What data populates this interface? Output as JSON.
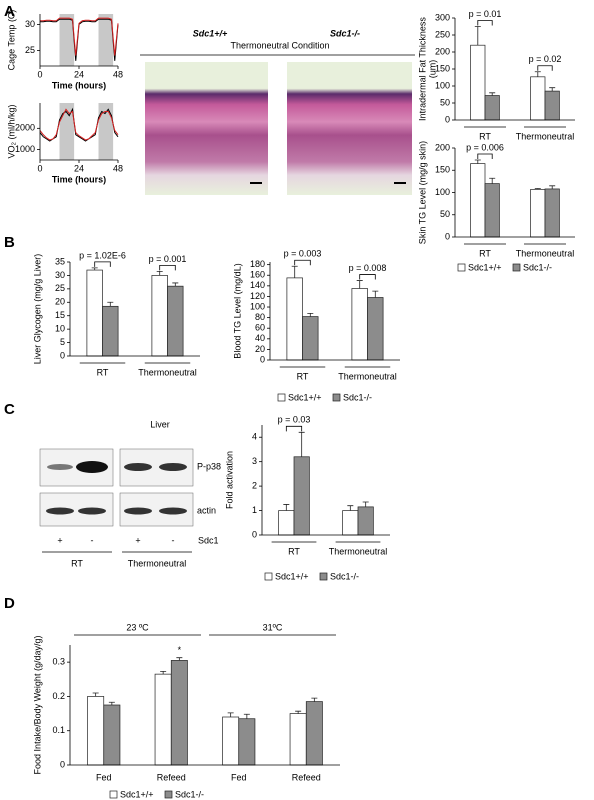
{
  "panel_labels": [
    "A",
    "B",
    "C",
    "D"
  ],
  "histology": {
    "labels": [
      "Sdc1+/+",
      "Sdc1-/-"
    ],
    "condition": "Thermoneutral Condition"
  },
  "western_blot": {
    "title": "Liver",
    "bands": [
      "P-p38",
      "actin"
    ],
    "genotype": [
      "+",
      "-",
      "+",
      "-"
    ],
    "genotype_label": "Sdc1",
    "conditions": [
      "RT",
      "Thermoneutral"
    ]
  },
  "chart_data": [
    {
      "type": "line",
      "ylabel": "Cage Temp (C)",
      "xlabel": "Time (hours)",
      "x": [
        0,
        2,
        4,
        6,
        8,
        10,
        12,
        14,
        16,
        18,
        20,
        22,
        24,
        26,
        28,
        30,
        32,
        34,
        36,
        38,
        40,
        42,
        44,
        46,
        48
      ],
      "xlim": [
        0,
        48
      ],
      "xticks": [
        0,
        24,
        48
      ],
      "ylim": [
        22,
        32
      ],
      "yticks": [
        25,
        30
      ],
      "shaded": [
        [
          12,
          21
        ],
        [
          36,
          45
        ]
      ],
      "series": [
        {
          "color": "#000000",
          "values": [
            30.5,
            30.5,
            30.6,
            30.6,
            30.5,
            30.5,
            31,
            31,
            31,
            31,
            30.8,
            23,
            30,
            30.5,
            30.6,
            30.6,
            30.5,
            30.5,
            31,
            31,
            31,
            31,
            30.8,
            23,
            30
          ]
        },
        {
          "color": "#d62020",
          "values": [
            30.7,
            30.7,
            30.8,
            30.8,
            30.7,
            30.7,
            31.2,
            31.2,
            31.2,
            31.2,
            31,
            24,
            30.2,
            30.7,
            30.8,
            30.8,
            30.7,
            30.7,
            31.2,
            31.2,
            31.2,
            31.2,
            31,
            24,
            30.2
          ]
        }
      ]
    },
    {
      "type": "line",
      "ylabel": "VO₂ (ml/h/kg)",
      "xlabel": "Time (hours)",
      "x": [
        0,
        2,
        4,
        6,
        8,
        10,
        12,
        14,
        16,
        18,
        20,
        22,
        24,
        26,
        28,
        30,
        32,
        34,
        36,
        38,
        40,
        42,
        44,
        46,
        48
      ],
      "xlim": [
        0,
        48
      ],
      "xticks": [
        0,
        24,
        48
      ],
      "ylim": [
        500,
        3200
      ],
      "yticks": [
        1000,
        2000
      ],
      "shaded": [
        [
          12,
          21
        ],
        [
          36,
          45
        ]
      ],
      "series": [
        {
          "color": "#000000",
          "values": [
            1800,
            1600,
            1500,
            1400,
            1500,
            1600,
            2400,
            2700,
            2800,
            2600,
            2900,
            1700,
            1600,
            1500,
            1400,
            1500,
            1600,
            1700,
            2500,
            2800,
            2700,
            2900,
            2600,
            1800,
            1600
          ]
        },
        {
          "color": "#d62020",
          "values": [
            1900,
            1700,
            1550,
            1450,
            1500,
            1700,
            2300,
            2600,
            2900,
            2700,
            2800,
            1800,
            1650,
            1550,
            1450,
            1500,
            1650,
            1800,
            2400,
            2700,
            2800,
            2800,
            2500,
            1900,
            1700
          ]
        }
      ]
    },
    {
      "type": "bar",
      "ylabel": [
        "Intradermal Fat Thickness",
        "(um)"
      ],
      "categories": [
        "RT",
        "Thermoneutral"
      ],
      "ylim": [
        0,
        300
      ],
      "yticks": [
        0,
        50,
        100,
        150,
        200,
        250,
        300
      ],
      "legend": false,
      "annotations": [
        "p = 0.01",
        "p = 0.02"
      ],
      "series": [
        {
          "name": "Sdc1+/+",
          "color": "#ffffff",
          "values": [
            220,
            127
          ],
          "errors": [
            55,
            15
          ]
        },
        {
          "name": "Sdc1-/-",
          "color": "#8c8c8c",
          "values": [
            72,
            85
          ],
          "errors": [
            8,
            10
          ]
        }
      ]
    },
    {
      "type": "bar",
      "ylabel": [
        "Skin TG Level (mg/g skin)"
      ],
      "categories": [
        "RT",
        "Thermoneutral"
      ],
      "ylim": [
        0,
        200
      ],
      "yticks": [
        0,
        50,
        100,
        150,
        200
      ],
      "legend": true,
      "annotations": [
        "p = 0.006"
      ],
      "series": [
        {
          "name": "Sdc1+/+",
          "color": "#ffffff",
          "values": [
            165,
            107
          ],
          "errors": [
            8,
            2
          ]
        },
        {
          "name": "Sdc1-/-",
          "color": "#8c8c8c",
          "values": [
            120,
            108
          ],
          "errors": [
            12,
            7
          ]
        }
      ]
    },
    {
      "type": "bar",
      "ylabel": [
        "Liver Glycogen (mg/g Liver)"
      ],
      "categories": [
        "RT",
        "Thermoneutral"
      ],
      "ylim": [
        0,
        35
      ],
      "yticks": [
        0,
        5,
        10,
        15,
        20,
        25,
        30,
        35
      ],
      "legend": false,
      "annotations": [
        "p = 1.02E-6",
        "p = 0.001"
      ],
      "series": [
        {
          "name": "Sdc1+/+",
          "color": "#ffffff",
          "values": [
            32,
            30
          ],
          "errors": [
            0.8,
            1.5
          ]
        },
        {
          "name": "Sdc1-/-",
          "color": "#8c8c8c",
          "values": [
            18.5,
            26
          ],
          "errors": [
            1.5,
            1.2
          ]
        }
      ]
    },
    {
      "type": "bar",
      "ylabel": [
        "Blood TG Level (mg/dL)"
      ],
      "categories": [
        "RT",
        "Thermoneutral"
      ],
      "ylim": [
        0,
        185
      ],
      "yticks": [
        0,
        20,
        40,
        60,
        80,
        100,
        120,
        140,
        160,
        180
      ],
      "legend": true,
      "annotations": [
        "p = 0.003",
        "p = 0.008"
      ],
      "series": [
        {
          "name": "Sdc1+/+",
          "color": "#ffffff",
          "values": [
            155,
            135
          ],
          "errors": [
            22,
            15
          ]
        },
        {
          "name": "Sdc1-/-",
          "color": "#8c8c8c",
          "values": [
            82,
            118
          ],
          "errors": [
            6,
            12
          ]
        }
      ]
    },
    {
      "type": "bar",
      "ylabel": [
        "Fold activation"
      ],
      "categories": [
        "RT",
        "Thermoneutral"
      ],
      "ylim": [
        0,
        4.5
      ],
      "yticks": [
        0,
        1,
        2,
        3,
        4
      ],
      "legend": true,
      "annotations": [
        "p = 0.03"
      ],
      "series": [
        {
          "name": "Sdc1+/+",
          "color": "#ffffff",
          "values": [
            1,
            1
          ],
          "errors": [
            0.25,
            0.2
          ]
        },
        {
          "name": "Sdc1-/-",
          "color": "#8c8c8c",
          "values": [
            3.2,
            1.15
          ],
          "errors": [
            1.0,
            0.2
          ]
        }
      ]
    },
    {
      "type": "bar",
      "ylabel": [
        "Food Intake/Body Weight (g/day/g)"
      ],
      "categories": [
        "Fed",
        "Refeed",
        "Fed",
        "Refeed"
      ],
      "groups": [
        "23 ºC",
        "31ºC"
      ],
      "ylim": [
        0,
        0.35
      ],
      "yticks": [
        0,
        0.1,
        0.2,
        0.3
      ],
      "legend": true,
      "annotations": [
        "*"
      ],
      "series": [
        {
          "name": "Sdc1+/+",
          "color": "#ffffff",
          "values": [
            0.2,
            0.265,
            0.14,
            0.15
          ],
          "errors": [
            0.01,
            0.008,
            0.012,
            0.007
          ]
        },
        {
          "name": "Sdc1-/-",
          "color": "#8c8c8c",
          "values": [
            0.175,
            0.305,
            0.135,
            0.185
          ],
          "errors": [
            0.008,
            0.008,
            0.013,
            0.01
          ]
        }
      ]
    }
  ]
}
